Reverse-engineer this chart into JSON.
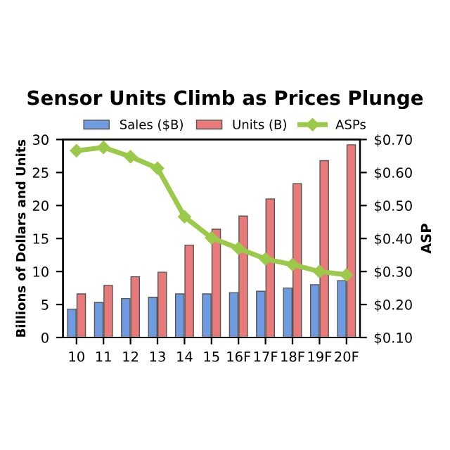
{
  "chart_data": {
    "type": "bar",
    "title": "Sensor Units Climb as Prices Plunge",
    "ylabel": "Billions of Dollars and Units",
    "y2label": "ASP",
    "categories": [
      "10",
      "11",
      "12",
      "13",
      "14",
      "15",
      "16F",
      "17F",
      "18F",
      "19F",
      "20F"
    ],
    "series": [
      {
        "name": "Sales ($B)",
        "color": "#6f9be0",
        "values": [
          4.3,
          5.3,
          5.9,
          6.1,
          6.6,
          6.6,
          6.8,
          7.0,
          7.5,
          8.0,
          8.6
        ]
      },
      {
        "name": "Units (B)",
        "color": "#e87a7a",
        "values": [
          6.6,
          7.9,
          9.2,
          9.9,
          14.0,
          16.4,
          18.4,
          21.0,
          23.3,
          26.8,
          29.2
        ]
      },
      {
        "name": "ASPs",
        "type": "line",
        "axis": "y2",
        "color": "#9bc94a",
        "marker": "diamond",
        "values": [
          0.666,
          0.676,
          0.648,
          0.613,
          0.466,
          0.402,
          0.37,
          0.338,
          0.321,
          0.3,
          0.29
        ]
      }
    ],
    "ylim": [
      0,
      30
    ],
    "yticks": [
      0,
      5,
      10,
      15,
      20,
      25,
      30
    ],
    "y2lim": [
      0.1,
      0.7
    ],
    "y2ticks": [
      {
        "value": 0.1,
        "label": "$0.10"
      },
      {
        "value": 0.2,
        "label": "$0.20"
      },
      {
        "value": 0.3,
        "label": "$0.30"
      },
      {
        "value": 0.4,
        "label": "$0.40"
      },
      {
        "value": 0.5,
        "label": "$0.50"
      },
      {
        "value": 0.6,
        "label": "$0.60"
      },
      {
        "value": 0.7,
        "label": "$0.70"
      }
    ],
    "legend": "top",
    "grid": false
  }
}
